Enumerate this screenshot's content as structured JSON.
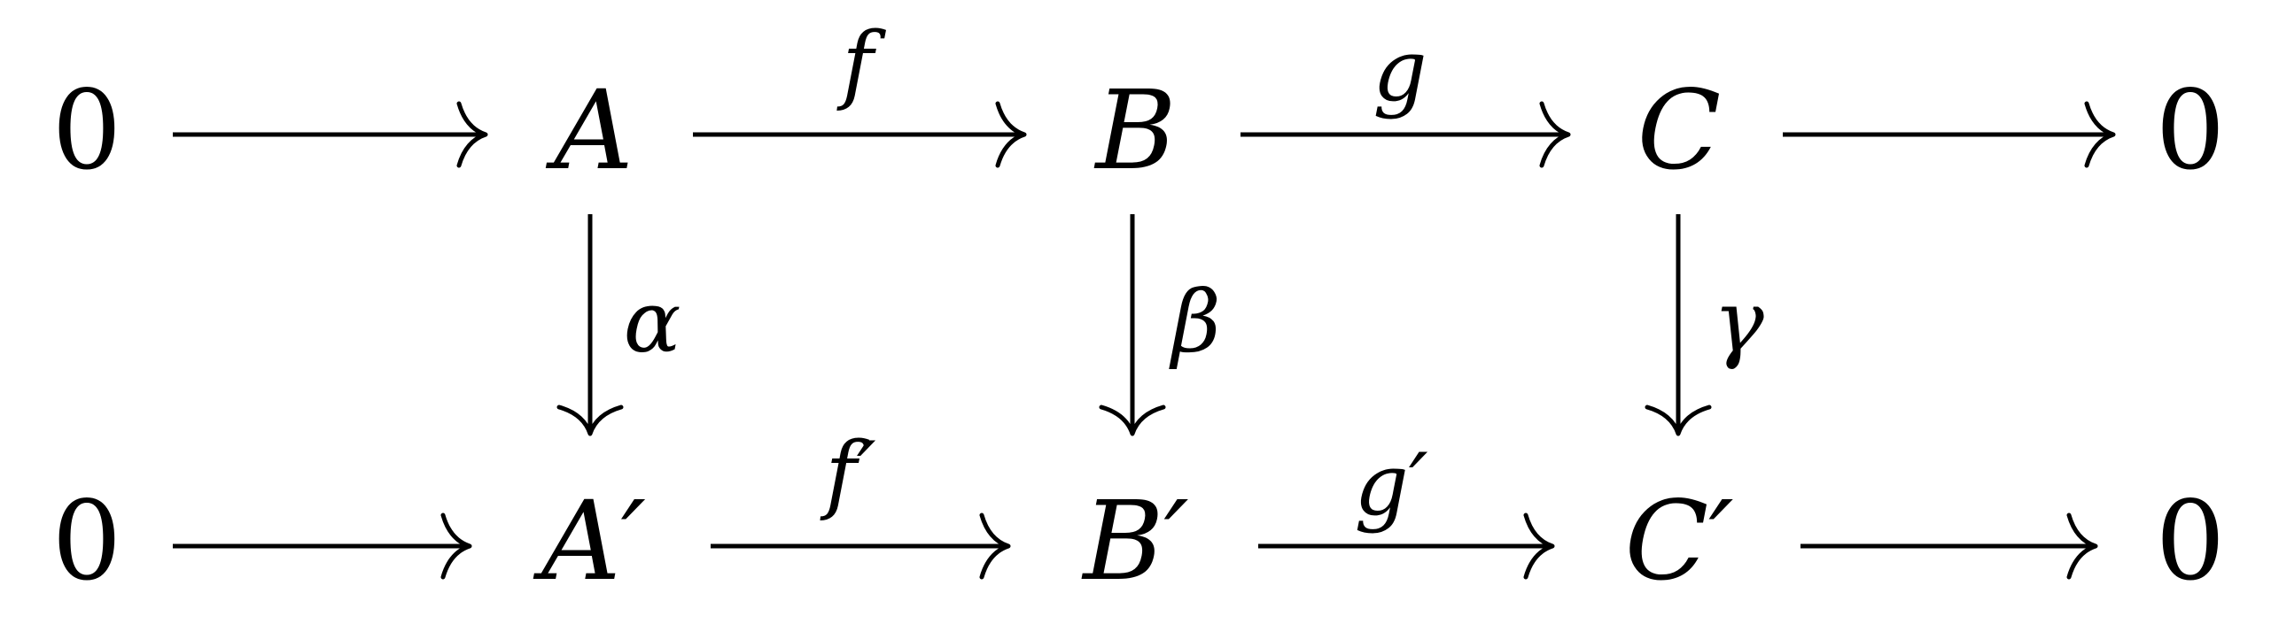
{
  "diagram": {
    "rows": [
      {
        "nodes": [
          "0",
          "A",
          "B",
          "C",
          "0"
        ]
      },
      {
        "nodes": [
          "0",
          "A′",
          "B′",
          "C′",
          "0"
        ]
      }
    ],
    "horizontal_labels": {
      "top": [
        "",
        "f",
        "g",
        ""
      ],
      "bottom": [
        "",
        "f′",
        "g′",
        ""
      ]
    },
    "vertical_labels": [
      "α",
      "β",
      "γ"
    ]
  }
}
